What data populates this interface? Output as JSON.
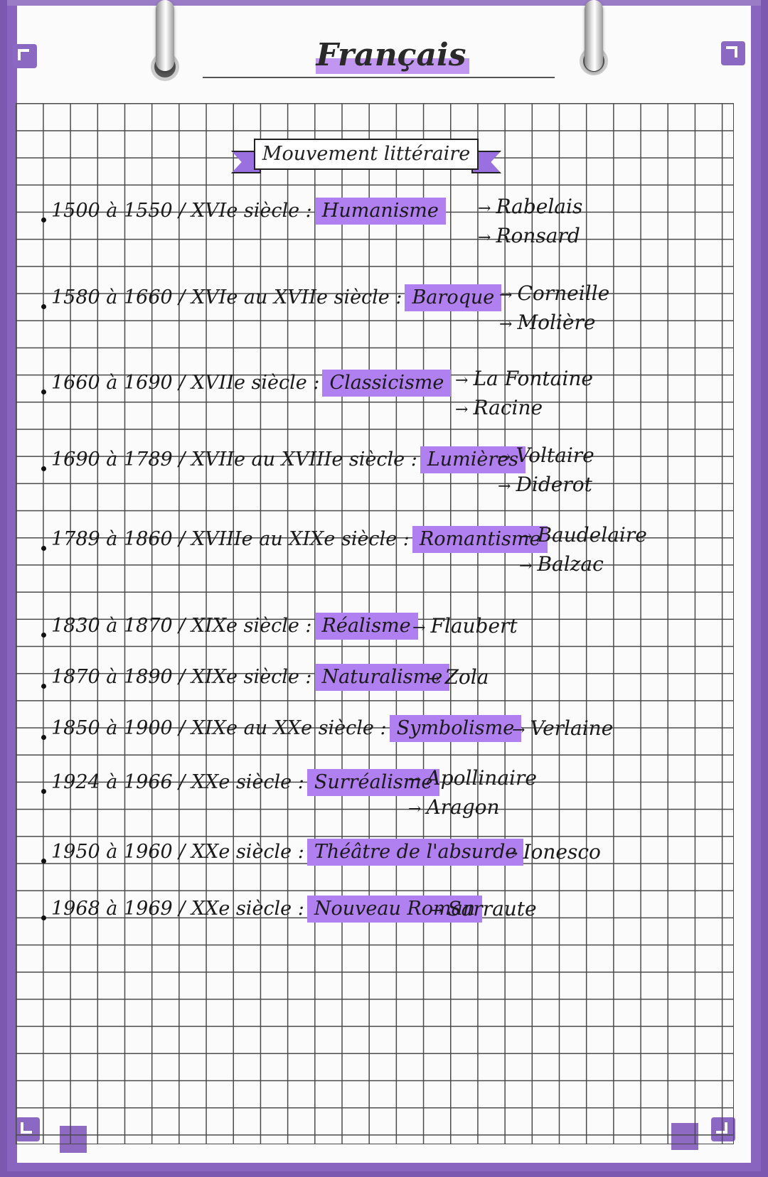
{
  "page": {
    "title": "Français",
    "heading": "Mouvement littéraire"
  },
  "entries": [
    {
      "dates": "1500 à 1550 / XVIe siècle :",
      "movement": "Humanisme",
      "authors": [
        "Rabelais",
        "Ronsard"
      ]
    },
    {
      "dates": "1580 à 1660 / XVIe au XVIIe siècle :",
      "movement": "Baroque",
      "authors": [
        "Corneille",
        "Molière"
      ]
    },
    {
      "dates": "1660 à 1690 / XVIIe siècle :",
      "movement": "Classicisme",
      "authors": [
        "La Fontaine",
        "Racine"
      ]
    },
    {
      "dates": "1690 à 1789 / XVIIe au XVIIIe siècle :",
      "movement": "Lumières",
      "authors": [
        "Voltaire",
        "Diderot"
      ]
    },
    {
      "dates": "1789 à 1860 / XVIIIe au XIXe siècle :",
      "movement": "Romantisme",
      "authors": [
        "Baudelaire",
        "Balzac"
      ]
    },
    {
      "dates": "1830 à 1870 / XIXe siècle :",
      "movement": "Réalisme",
      "authors": [
        "Flaubert"
      ]
    },
    {
      "dates": "1870 à 1890 / XIXe siècle :",
      "movement": "Naturalisme",
      "authors": [
        "Zola"
      ]
    },
    {
      "dates": "1850 à 1900 / XIXe au XXe siècle :",
      "movement": "Symbolisme",
      "authors": [
        "Verlaine"
      ]
    },
    {
      "dates": "1924 à 1966 / XXe siècle :",
      "movement": "Surréalisme",
      "authors": [
        "Apollinaire",
        "Aragon"
      ]
    },
    {
      "dates": "1950 à 1960 / XXe siècle :",
      "movement": "Théâtre de l'absurde",
      "authors": [
        "Ionesco"
      ]
    },
    {
      "dates": "1968 à 1969 / XXe siècle :",
      "movement": "Nouveau Roman",
      "authors": [
        "Sarraute"
      ]
    }
  ],
  "colors": {
    "highlight": "#b07ff0",
    "binder": "#8a65c0"
  },
  "icons": [
    "binder-ring-icon",
    "corner-bracket-icon"
  ]
}
